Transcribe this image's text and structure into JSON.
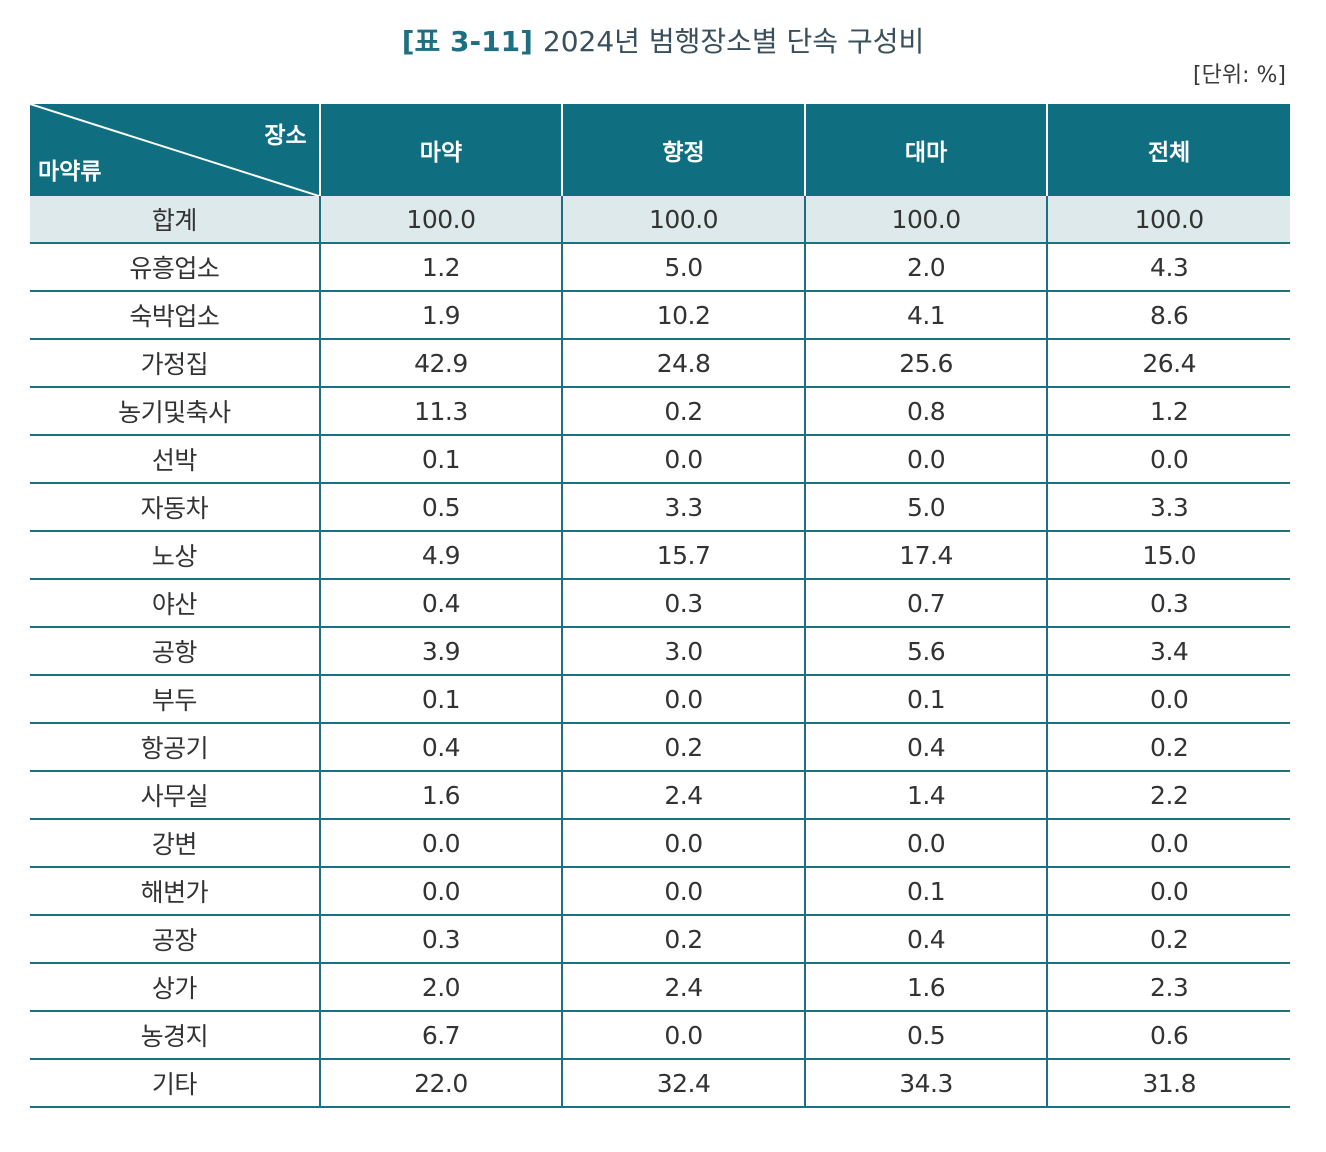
{
  "title": {
    "tag": "[표 3-11]",
    "text": "2024년 범행장소별 단속 구성비"
  },
  "unit": "[단위: %]",
  "table": {
    "corner_top_right": "장소",
    "corner_bottom_left": "마약류",
    "columns": [
      "마약",
      "향정",
      "대마",
      "전체"
    ],
    "rows": [
      {
        "label": "합계",
        "values": [
          "100.0",
          "100.0",
          "100.0",
          "100.0"
        ]
      },
      {
        "label": "유흥업소",
        "values": [
          "1.2",
          "5.0",
          "2.0",
          "4.3"
        ]
      },
      {
        "label": "숙박업소",
        "values": [
          "1.9",
          "10.2",
          "4.1",
          "8.6"
        ]
      },
      {
        "label": "가정집",
        "values": [
          "42.9",
          "24.8",
          "25.6",
          "26.4"
        ]
      },
      {
        "label": "농기및축사",
        "values": [
          "11.3",
          "0.2",
          "0.8",
          "1.2"
        ]
      },
      {
        "label": "선박",
        "values": [
          "0.1",
          "0.0",
          "0.0",
          "0.0"
        ]
      },
      {
        "label": "자동차",
        "values": [
          "0.5",
          "3.3",
          "5.0",
          "3.3"
        ]
      },
      {
        "label": "노상",
        "values": [
          "4.9",
          "15.7",
          "17.4",
          "15.0"
        ]
      },
      {
        "label": "야산",
        "values": [
          "0.4",
          "0.3",
          "0.7",
          "0.3"
        ]
      },
      {
        "label": "공항",
        "values": [
          "3.9",
          "3.0",
          "5.6",
          "3.4"
        ]
      },
      {
        "label": "부두",
        "values": [
          "0.1",
          "0.0",
          "0.1",
          "0.0"
        ]
      },
      {
        "label": "항공기",
        "values": [
          "0.4",
          "0.2",
          "0.4",
          "0.2"
        ]
      },
      {
        "label": "사무실",
        "values": [
          "1.6",
          "2.4",
          "1.4",
          "2.2"
        ]
      },
      {
        "label": "강변",
        "values": [
          "0.0",
          "0.0",
          "0.0",
          "0.0"
        ]
      },
      {
        "label": "해변가",
        "values": [
          "0.0",
          "0.0",
          "0.1",
          "0.0"
        ]
      },
      {
        "label": "공장",
        "values": [
          "0.3",
          "0.2",
          "0.4",
          "0.2"
        ]
      },
      {
        "label": "상가",
        "values": [
          "2.0",
          "2.4",
          "1.6",
          "2.3"
        ]
      },
      {
        "label": "농경지",
        "values": [
          "6.7",
          "0.0",
          "0.5",
          "0.6"
        ]
      },
      {
        "label": "기타",
        "values": [
          "22.0",
          "32.4",
          "34.3",
          "31.8"
        ]
      }
    ]
  },
  "colors": {
    "header_bg": "#0f6f80",
    "total_row_bg": "#dde9ea",
    "rule": "#1f6f80",
    "title_tag": "#1f6f80"
  }
}
